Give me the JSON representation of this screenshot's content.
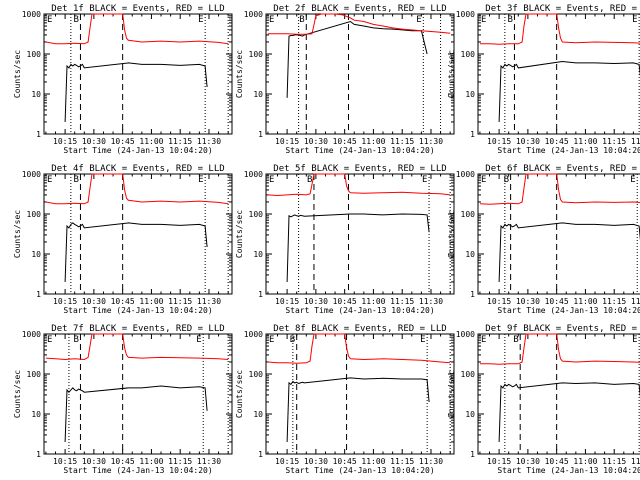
{
  "colors": {
    "events": "#000000",
    "lld": "#ff0000",
    "axes": "#000000",
    "background": "#ffffff"
  },
  "chart_data": [
    {
      "type": "line",
      "title": "Det 1f BLACK = Events, RED = LLD",
      "xlabel": "Start Time (24-Jan-13 10:04:20)",
      "ylabel": "Counts/sec",
      "x_ticks": [
        "10:15",
        "10:30",
        "10:45",
        "11:00",
        "11:15",
        "11:30"
      ],
      "y_ticks": [
        "1",
        "10",
        "100",
        "1000"
      ],
      "yscale": "log",
      "ylim": [
        1,
        1000
      ],
      "region_labels": [
        "E",
        "B",
        "E"
      ],
      "series": [
        {
          "color": "#000000",
          "x": [
            "10:15",
            "10:16",
            "10:17",
            "10:18",
            "10:19",
            "10:20",
            "10:21",
            "10:22",
            "10:23",
            "10:24",
            "10:25",
            "10:48",
            "10:55",
            "11:05",
            "11:15",
            "11:25",
            "11:28",
            "11:29"
          ],
          "y": [
            2,
            50,
            45,
            55,
            50,
            55,
            52,
            48,
            50,
            55,
            45,
            60,
            55,
            55,
            52,
            55,
            50,
            15
          ]
        },
        {
          "color": "#ff0000",
          "x": [
            "10:05",
            "10:10",
            "10:15",
            "10:20",
            "10:25",
            "10:27",
            "10:28",
            "10:29",
            "10:45",
            "10:46",
            "10:47",
            "10:48",
            "10:55",
            "11:05",
            "11:15",
            "11:25",
            "11:35",
            "11:40"
          ],
          "y": [
            200,
            180,
            180,
            185,
            180,
            200,
            450,
            1000,
            1000,
            400,
            250,
            220,
            200,
            210,
            200,
            210,
            195,
            180
          ]
        }
      ]
    },
    {
      "type": "line",
      "title": "Det 2f BLACK = Events, RED = LLD",
      "xlabel": "Start Time (24-Jan-13 10:04:20)",
      "ylabel": "Counts/sec",
      "x_ticks": [
        "10:15",
        "10:30",
        "10:45",
        "11:00",
        "11:15",
        "11:30"
      ],
      "y_ticks": [
        "1",
        "10",
        "100",
        "1000"
      ],
      "yscale": "log",
      "ylim": [
        1,
        1000
      ],
      "region_labels": [
        "E",
        "B",
        "E"
      ],
      "series": [
        {
          "color": "#000000",
          "x": [
            "10:15",
            "10:16",
            "10:17",
            "10:18",
            "10:19",
            "10:20",
            "10:21",
            "10:22",
            "10:23",
            "10:24",
            "10:48",
            "10:50",
            "10:55",
            "11:00",
            "11:05",
            "11:10",
            "11:15",
            "11:20",
            "11:25",
            "11:28"
          ],
          "y": [
            8,
            280,
            290,
            290,
            300,
            300,
            300,
            290,
            280,
            300,
            650,
            550,
            500,
            450,
            430,
            420,
            400,
            380,
            380,
            100
          ]
        },
        {
          "color": "#ff0000",
          "x": [
            "10:05",
            "10:10",
            "10:15",
            "10:20",
            "10:25",
            "10:28",
            "10:30",
            "10:33",
            "10:36",
            "10:40",
            "10:44",
            "10:48",
            "10:50",
            "10:55",
            "11:00",
            "11:05",
            "11:10",
            "11:15",
            "11:25",
            "11:35",
            "11:40"
          ],
          "y": [
            320,
            320,
            320,
            310,
            310,
            320,
            900,
            1000,
            1000,
            1000,
            950,
            800,
            700,
            650,
            550,
            500,
            450,
            420,
            380,
            350,
            330
          ]
        }
      ]
    },
    {
      "type": "line",
      "title": "Det 3f BLACK = Events, RED = LLD",
      "xlabel": "Start Time (24-Jan-13 10:04:20)",
      "ylabel": "Counts/sec",
      "x_ticks": [
        "10:15",
        "10:30",
        "10:45",
        "11:00",
        "11:15",
        "11:30"
      ],
      "y_ticks": [
        "1",
        "10",
        "100",
        "1000"
      ],
      "yscale": "log",
      "ylim": [
        1,
        1000
      ],
      "region_labels": [
        "E",
        "B",
        "E"
      ],
      "series": [
        {
          "color": "#000000",
          "x": [
            "10:15",
            "10:16",
            "10:17",
            "10:18",
            "10:19",
            "10:20",
            "10:21",
            "10:22",
            "10:23",
            "10:24",
            "10:25",
            "10:48",
            "10:55",
            "11:05",
            "11:15",
            "11:25",
            "11:28",
            "11:29"
          ],
          "y": [
            2,
            50,
            45,
            55,
            50,
            55,
            52,
            48,
            50,
            55,
            45,
            65,
            60,
            60,
            58,
            60,
            55,
            20
          ]
        },
        {
          "color": "#ff0000",
          "x": [
            "10:05",
            "10:10",
            "10:15",
            "10:20",
            "10:25",
            "10:27",
            "10:28",
            "10:29",
            "10:45",
            "10:46",
            "10:47",
            "10:48",
            "10:55",
            "11:05",
            "11:15",
            "11:25",
            "11:35",
            "11:40"
          ],
          "y": [
            180,
            180,
            175,
            180,
            180,
            200,
            500,
            1000,
            1000,
            450,
            250,
            200,
            190,
            200,
            195,
            190,
            180,
            170
          ]
        }
      ]
    },
    {
      "type": "line",
      "title": "Det 4f BLACK = Events, RED = LLD",
      "xlabel": "Start Time (24-Jan-13 10:04:20)",
      "ylabel": "Counts/sec",
      "x_ticks": [
        "10:15",
        "10:30",
        "10:45",
        "11:00",
        "11:15",
        "11:30"
      ],
      "y_ticks": [
        "1",
        "10",
        "100",
        "1000"
      ],
      "yscale": "log",
      "ylim": [
        1,
        1000
      ],
      "region_labels": [
        "E",
        "B",
        "E"
      ],
      "series": [
        {
          "color": "#000000",
          "x": [
            "10:15",
            "10:16",
            "10:17",
            "10:18",
            "10:19",
            "10:20",
            "10:21",
            "10:22",
            "10:23",
            "10:24",
            "10:25",
            "10:48",
            "10:55",
            "11:05",
            "11:15",
            "11:25",
            "11:28",
            "11:29"
          ],
          "y": [
            2,
            50,
            45,
            55,
            60,
            55,
            52,
            48,
            50,
            55,
            45,
            60,
            55,
            55,
            52,
            55,
            50,
            15
          ]
        },
        {
          "color": "#ff0000",
          "x": [
            "10:05",
            "10:10",
            "10:15",
            "10:20",
            "10:25",
            "10:27",
            "10:28",
            "10:29",
            "10:45",
            "10:46",
            "10:47",
            "10:48",
            "10:55",
            "11:05",
            "11:15",
            "11:25",
            "11:35",
            "11:40"
          ],
          "y": [
            200,
            180,
            180,
            185,
            180,
            200,
            450,
            1000,
            1000,
            400,
            250,
            220,
            200,
            210,
            200,
            210,
            195,
            180
          ]
        }
      ]
    },
    {
      "type": "line",
      "title": "Det 5f BLACK = Events, RED = LLD",
      "xlabel": "Start Time (24-Jan-13 10:04:20)",
      "ylabel": "Counts/sec",
      "x_ticks": [
        "10:15",
        "10:30",
        "10:45",
        "11:00",
        "11:15",
        "11:30"
      ],
      "y_ticks": [
        "1",
        "10",
        "100",
        "1000"
      ],
      "yscale": "log",
      "ylim": [
        1,
        1000
      ],
      "region_labels": [
        "E",
        "B",
        "E"
      ],
      "series": [
        {
          "color": "#000000",
          "x": [
            "10:15",
            "10:16",
            "10:17",
            "10:18",
            "10:19",
            "10:20",
            "10:21",
            "10:22",
            "10:23",
            "10:24",
            "10:48",
            "10:55",
            "11:05",
            "11:15",
            "11:25",
            "11:28",
            "11:29"
          ],
          "y": [
            2,
            90,
            85,
            90,
            95,
            90,
            88,
            92,
            90,
            88,
            100,
            100,
            95,
            100,
            98,
            95,
            35
          ]
        },
        {
          "color": "#ff0000",
          "x": [
            "10:05",
            "10:10",
            "10:15",
            "10:20",
            "10:25",
            "10:27",
            "10:28",
            "10:29",
            "10:45",
            "10:46",
            "10:47",
            "10:48",
            "10:55",
            "11:05",
            "11:15",
            "11:25",
            "11:35",
            "11:40"
          ],
          "y": [
            300,
            290,
            300,
            310,
            300,
            320,
            550,
            1000,
            1000,
            500,
            380,
            340,
            330,
            340,
            350,
            330,
            320,
            300
          ]
        }
      ]
    },
    {
      "type": "line",
      "title": "Det 6f BLACK = Events, RED = LLD",
      "xlabel": "Start Time (24-Jan-13 10:04:20)",
      "ylabel": "Counts/sec",
      "x_ticks": [
        "10:15",
        "10:30",
        "10:45",
        "11:00",
        "11:15",
        "11:30"
      ],
      "y_ticks": [
        "1",
        "10",
        "100",
        "1000"
      ],
      "yscale": "log",
      "ylim": [
        1,
        1000
      ],
      "region_labels": [
        "E",
        "B",
        "E"
      ],
      "series": [
        {
          "color": "#000000",
          "x": [
            "10:15",
            "10:16",
            "10:17",
            "10:18",
            "10:19",
            "10:20",
            "10:21",
            "10:22",
            "10:23",
            "10:24",
            "10:25",
            "10:48",
            "10:55",
            "11:05",
            "11:15",
            "11:25",
            "11:28",
            "11:29"
          ],
          "y": [
            2,
            50,
            45,
            55,
            50,
            55,
            52,
            48,
            50,
            55,
            45,
            60,
            55,
            55,
            52,
            55,
            50,
            15
          ]
        },
        {
          "color": "#ff0000",
          "x": [
            "10:05",
            "10:10",
            "10:15",
            "10:20",
            "10:25",
            "10:27",
            "10:28",
            "10:29",
            "10:45",
            "10:46",
            "10:47",
            "10:48",
            "10:55",
            "11:05",
            "11:15",
            "11:25",
            "11:35",
            "11:40"
          ],
          "y": [
            180,
            175,
            180,
            185,
            180,
            200,
            450,
            1000,
            1000,
            400,
            230,
            200,
            190,
            200,
            195,
            200,
            185,
            175
          ]
        }
      ]
    },
    {
      "type": "line",
      "title": "Det 7f BLACK = Events, RED = LLD",
      "xlabel": "Start Time (24-Jan-13 10:04:20)",
      "ylabel": "Counts/sec",
      "x_ticks": [
        "10:15",
        "10:30",
        "10:45",
        "11:00",
        "11:15",
        "11:30"
      ],
      "y_ticks": [
        "1",
        "10",
        "100",
        "1000"
      ],
      "yscale": "log",
      "ylim": [
        1,
        1000
      ],
      "region_labels": [
        "E",
        "B",
        "E"
      ],
      "series": [
        {
          "color": "#000000",
          "x": [
            "10:15",
            "10:16",
            "10:17",
            "10:18",
            "10:19",
            "10:20",
            "10:21",
            "10:22",
            "10:23",
            "10:24",
            "10:25",
            "10:48",
            "10:55",
            "11:05",
            "11:15",
            "11:25",
            "11:28",
            "11:29"
          ],
          "y": [
            2,
            40,
            35,
            40,
            45,
            40,
            38,
            42,
            40,
            38,
            35,
            45,
            45,
            50,
            45,
            48,
            45,
            12
          ]
        },
        {
          "color": "#ff0000",
          "x": [
            "10:05",
            "10:10",
            "10:15",
            "10:20",
            "10:25",
            "10:27",
            "10:28",
            "10:29",
            "10:45",
            "10:46",
            "10:47",
            "10:48",
            "10:55",
            "11:05",
            "11:15",
            "11:25",
            "11:35",
            "11:40"
          ],
          "y": [
            250,
            240,
            230,
            240,
            230,
            260,
            500,
            1000,
            1000,
            450,
            300,
            260,
            250,
            260,
            255,
            250,
            240,
            230
          ]
        }
      ]
    },
    {
      "type": "line",
      "title": "Det 8f BLACK = Events, RED = LLD",
      "xlabel": "Start Time (24-Jan-13 10:04:20)",
      "ylabel": "Counts/sec",
      "x_ticks": [
        "10:15",
        "10:30",
        "10:45",
        "11:00",
        "11:15",
        "11:30"
      ],
      "y_ticks": [
        "1",
        "10",
        "100",
        "1000"
      ],
      "yscale": "log",
      "ylim": [
        1,
        1000
      ],
      "region_labels": [
        "E",
        "B",
        "E"
      ],
      "series": [
        {
          "color": "#000000",
          "x": [
            "10:15",
            "10:16",
            "10:17",
            "10:18",
            "10:19",
            "10:20",
            "10:21",
            "10:22",
            "10:23",
            "10:24",
            "10:48",
            "10:55",
            "11:05",
            "11:15",
            "11:25",
            "11:28",
            "11:29"
          ],
          "y": [
            2,
            60,
            55,
            65,
            60,
            62,
            58,
            60,
            62,
            60,
            80,
            75,
            78,
            75,
            75,
            72,
            20
          ]
        },
        {
          "color": "#ff0000",
          "x": [
            "10:05",
            "10:10",
            "10:15",
            "10:20",
            "10:25",
            "10:27",
            "10:28",
            "10:29",
            "10:45",
            "10:46",
            "10:47",
            "10:48",
            "10:55",
            "11:05",
            "11:15",
            "11:25",
            "11:35",
            "11:40"
          ],
          "y": [
            200,
            190,
            190,
            185,
            190,
            210,
            500,
            1000,
            1000,
            450,
            280,
            240,
            230,
            240,
            230,
            220,
            200,
            190
          ]
        }
      ]
    },
    {
      "type": "line",
      "title": "Det 9f BLACK = Events, RED = LLD",
      "xlabel": "Start Time (24-Jan-13 10:04:20)",
      "ylabel": "Counts/sec",
      "x_ticks": [
        "10:15",
        "10:30",
        "10:45",
        "11:00",
        "11:15",
        "11:30"
      ],
      "y_ticks": [
        "1",
        "10",
        "100",
        "1000"
      ],
      "yscale": "log",
      "ylim": [
        1,
        1000
      ],
      "region_labels": [
        "E",
        "B",
        "E"
      ],
      "series": [
        {
          "color": "#000000",
          "x": [
            "10:15",
            "10:16",
            "10:17",
            "10:18",
            "10:19",
            "10:20",
            "10:21",
            "10:22",
            "10:23",
            "10:24",
            "10:25",
            "10:48",
            "10:55",
            "11:05",
            "11:15",
            "11:25",
            "11:28",
            "11:29"
          ],
          "y": [
            2,
            50,
            45,
            55,
            50,
            55,
            52,
            48,
            50,
            55,
            45,
            60,
            58,
            60,
            55,
            58,
            55,
            18
          ]
        },
        {
          "color": "#ff0000",
          "x": [
            "10:05",
            "10:10",
            "10:15",
            "10:20",
            "10:25",
            "10:27",
            "10:28",
            "10:29",
            "10:45",
            "10:46",
            "10:47",
            "10:48",
            "10:55",
            "11:05",
            "11:15",
            "11:25",
            "11:35",
            "11:40"
          ],
          "y": [
            180,
            180,
            175,
            180,
            180,
            200,
            450,
            1000,
            1000,
            400,
            240,
            210,
            200,
            210,
            205,
            200,
            190,
            180
          ]
        }
      ]
    }
  ]
}
